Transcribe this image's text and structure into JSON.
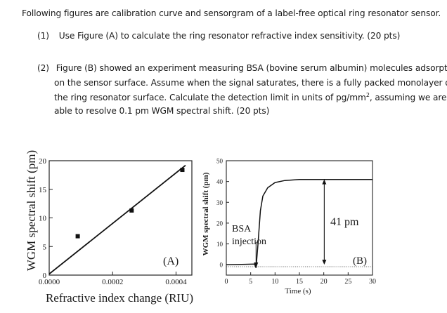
{
  "intro": "Following figures are calibration curve and sensorgram of a label-free optical ring resonator sensor.",
  "q1": {
    "number": "(1)",
    "text": "Use Figure (A) to calculate the ring resonator refractive index sensitivity. (20 pts)"
  },
  "q2": {
    "number": "(2)",
    "line1": "Figure (B) showed an experiment measuring BSA (bovine serum albumin) molecules adsorption",
    "line2": "on the sensor surface. Assume when the signal saturates, there is a fully packed monolayer on",
    "line3a": "the ring resonator surface. Calculate the detection limit in units of pg/mm",
    "line3sup": "2",
    "line3b": ", assuming we are",
    "line4": "able to resolve 0.1 pm WGM spectral shift. (20 pts)"
  },
  "chart_data": [
    {
      "type": "scatter",
      "panel_label": "(A)",
      "xlabel": "Refractive index change (RIU)",
      "ylabel": "WGM spectral shift (pm)",
      "xlim": [
        0,
        0.00045
      ],
      "ylim": [
        0,
        20
      ],
      "x_ticks": [
        "0.0000",
        "0.0002",
        "0.0004"
      ],
      "y_ticks": [
        "0",
        "5",
        "10",
        "15",
        "20"
      ],
      "points": [
        {
          "x": 9e-05,
          "y": 6.8
        },
        {
          "x": 0.00026,
          "y": 11.3
        },
        {
          "x": 0.00042,
          "y": 18.4
        }
      ],
      "fit_line": [
        {
          "x": 0.0,
          "y": 0.2
        },
        {
          "x": 0.00043,
          "y": 19.2
        }
      ]
    },
    {
      "type": "line",
      "panel_label": "(B)",
      "xlabel": "Time (s)",
      "ylabel": "WGM spectral shift (pm)",
      "xlim": [
        0,
        30
      ],
      "ylim": [
        -5,
        50
      ],
      "x_ticks": [
        "0",
        "5",
        "10",
        "15",
        "20",
        "25",
        "30"
      ],
      "y_ticks": [
        "0",
        "10",
        "20",
        "30",
        "40",
        "50"
      ],
      "series": [
        {
          "values": [
            {
              "x": 0,
              "y": 0
            },
            {
              "x": 4,
              "y": 0.2
            },
            {
              "x": 5.8,
              "y": 0.3
            },
            {
              "x": 6.1,
              "y": -1.5
            },
            {
              "x": 6.5,
              "y": 10
            },
            {
              "x": 7.0,
              "y": 26
            },
            {
              "x": 7.5,
              "y": 33
            },
            {
              "x": 8.5,
              "y": 37
            },
            {
              "x": 10,
              "y": 39.5
            },
            {
              "x": 12,
              "y": 40.5
            },
            {
              "x": 15,
              "y": 41
            },
            {
              "x": 20,
              "y": 41
            },
            {
              "x": 30,
              "y": 41
            }
          ]
        }
      ],
      "annotations": {
        "injection_label_1": "BSA",
        "injection_label_2": "injection",
        "shift_label": "41 pm"
      }
    }
  ]
}
